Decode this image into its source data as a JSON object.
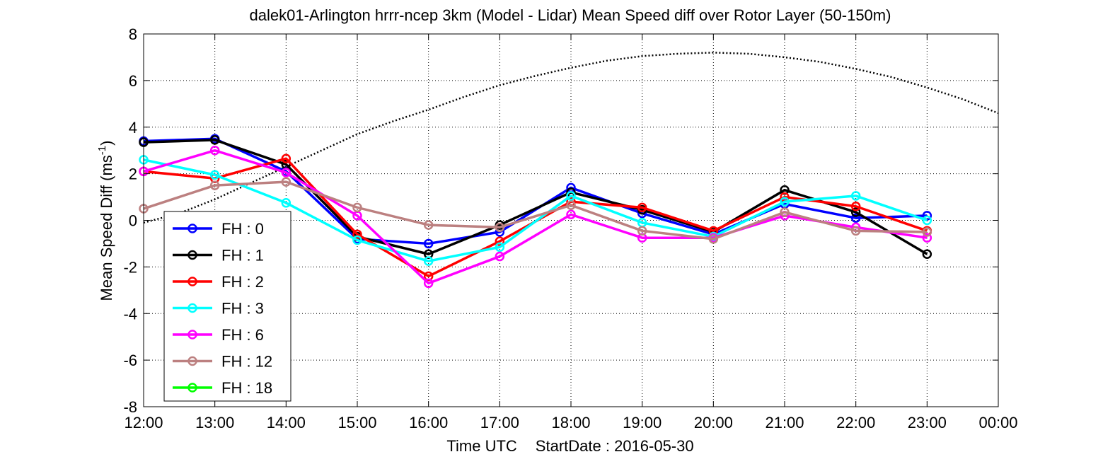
{
  "chart_data": {
    "type": "line",
    "title": "dalek01-Arlington hrrr-ncep 3km (Model - Lidar) Mean Speed diff over Rotor Layer (50-150m)",
    "xlabel_parts": {
      "time": "Time UTC",
      "start": "StartDate : 2016-05-30"
    },
    "ylabel": "Mean Speed Diff (ms",
    "ylabel_sup": "-1",
    "ylabel_close": ")",
    "x_ticks": [
      "12:00",
      "13:00",
      "14:00",
      "15:00",
      "16:00",
      "17:00",
      "18:00",
      "19:00",
      "20:00",
      "21:00",
      "22:00",
      "23:00",
      "00:00"
    ],
    "xlim": [
      0,
      12
    ],
    "ylim": [
      -8,
      8
    ],
    "y_ticks": [
      -8,
      -6,
      -4,
      -2,
      0,
      2,
      4,
      6,
      8
    ],
    "grid": true,
    "legend_position": "bottom-left",
    "series": [
      {
        "name": "FH : 0",
        "color": "#0000ff",
        "x": [
          0,
          1,
          2,
          3,
          4,
          5,
          6,
          7,
          8,
          9,
          10,
          11
        ],
        "y": [
          3.4,
          3.5,
          2.1,
          -0.8,
          -1.0,
          -0.5,
          1.4,
          0.3,
          -0.6,
          0.7,
          0.1,
          0.2
        ]
      },
      {
        "name": "FH : 1",
        "color": "#000000",
        "x": [
          0,
          1,
          2,
          3,
          4,
          5,
          6,
          7,
          8,
          9,
          10,
          11
        ],
        "y": [
          3.35,
          3.45,
          2.4,
          -0.7,
          -1.45,
          -0.2,
          1.2,
          0.45,
          -0.5,
          1.3,
          0.35,
          -1.45
        ]
      },
      {
        "name": "FH : 2",
        "color": "#ff0000",
        "x": [
          0,
          1,
          2,
          3,
          4,
          5,
          6,
          7,
          8,
          9,
          10,
          11
        ],
        "y": [
          2.1,
          1.8,
          2.65,
          -0.6,
          -2.4,
          -0.9,
          0.8,
          0.55,
          -0.45,
          1.0,
          0.6,
          -0.45
        ]
      },
      {
        "name": "FH : 3",
        "color": "#00ffff",
        "x": [
          0,
          1,
          2,
          3,
          4,
          5,
          6,
          7,
          8,
          9,
          10,
          11
        ],
        "y": [
          2.6,
          1.95,
          0.75,
          -0.85,
          -1.75,
          -1.15,
          1.05,
          -0.1,
          -0.7,
          0.8,
          1.05,
          0.0
        ]
      },
      {
        "name": "FH : 6",
        "color": "#ff00ff",
        "x": [
          0,
          1,
          2,
          3,
          4,
          5,
          6,
          7,
          8,
          9,
          10,
          11
        ],
        "y": [
          2.1,
          3.0,
          2.05,
          0.2,
          -2.7,
          -1.55,
          0.25,
          -0.75,
          -0.75,
          0.2,
          -0.3,
          -0.75
        ]
      },
      {
        "name": "FH : 12",
        "color": "#bc8080",
        "x": [
          0,
          1,
          2,
          3,
          4,
          5,
          6,
          7,
          8,
          9,
          10,
          11
        ],
        "y": [
          0.5,
          1.5,
          1.65,
          0.55,
          -0.2,
          -0.3,
          0.65,
          -0.45,
          -0.8,
          0.35,
          -0.45,
          -0.5
        ]
      },
      {
        "name": "FH : 18",
        "color": "#00ff00",
        "x": [],
        "y": []
      }
    ],
    "reference_curve": {
      "style": "dotted",
      "color": "#000000",
      "x": [
        0,
        0.5,
        1,
        1.5,
        2,
        2.5,
        3,
        3.5,
        4,
        4.5,
        5,
        5.5,
        6,
        6.5,
        7,
        7.5,
        8,
        8.5,
        9,
        9.5,
        10,
        10.5,
        11,
        11.5,
        12
      ],
      "y": [
        -0.1,
        0.3,
        0.9,
        1.6,
        2.3,
        3.0,
        3.7,
        4.25,
        4.75,
        5.3,
        5.8,
        6.2,
        6.55,
        6.85,
        7.05,
        7.15,
        7.2,
        7.15,
        7.0,
        6.8,
        6.5,
        6.15,
        5.7,
        5.2,
        4.6
      ]
    }
  }
}
